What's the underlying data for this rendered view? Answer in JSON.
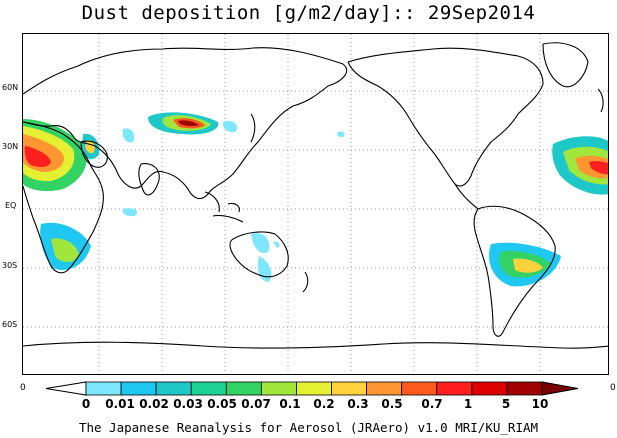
{
  "title": "Dust deposition [g/m2/day]:: 29Sep2014",
  "lat_labels": [
    "60N",
    "30N",
    "EQ",
    "30S",
    "60S"
  ],
  "colorbar": {
    "left_end": "0",
    "right_end": "0",
    "labels": [
      "0",
      "0.01",
      "0.02",
      "0.03",
      "0.05",
      "0.07",
      "0.1",
      "0.2",
      "0.3",
      "0.5",
      "0.7",
      "1",
      "5",
      "10"
    ],
    "colors": [
      "#ffffff",
      "#7fe6ff",
      "#1ec8f0",
      "#1ec8c8",
      "#1ed296",
      "#32d264",
      "#a0e63c",
      "#e6f032",
      "#ffd23c",
      "#ff9632",
      "#ff5a1e",
      "#ff1e1e",
      "#dc0000",
      "#a00000",
      "#780000"
    ]
  },
  "footer": "The Japanese Reanalysis for Aerosol (JRAero) v1.0 MRI/KU_RIAM"
}
